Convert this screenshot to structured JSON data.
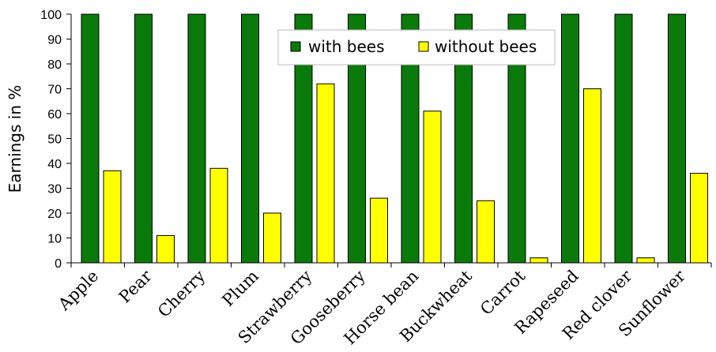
{
  "chart_data": {
    "type": "bar",
    "title": "",
    "xlabel": "",
    "ylabel": "Earnings in %",
    "ylim": [
      0,
      100
    ],
    "yticks": [
      0,
      10,
      20,
      30,
      40,
      50,
      60,
      70,
      80,
      90,
      100
    ],
    "grid": false,
    "legend_position": "top-center",
    "categories": [
      "Apple",
      "Pear",
      "Cherry",
      "Plum",
      "Strawberry",
      "Gooseberry",
      "Horse bean",
      "Buckwheat",
      "Carrot",
      "Rapeseed",
      "Red clover",
      "Sunflower"
    ],
    "series": [
      {
        "name": "with bees",
        "color": "#0a7a0a",
        "values": [
          100,
          100,
          100,
          100,
          100,
          100,
          100,
          100,
          100,
          100,
          100,
          100
        ]
      },
      {
        "name": "without bees",
        "color": "#ffff00",
        "values": [
          37,
          11,
          38,
          20,
          72,
          26,
          61,
          25,
          2,
          70,
          2,
          36
        ]
      }
    ]
  }
}
